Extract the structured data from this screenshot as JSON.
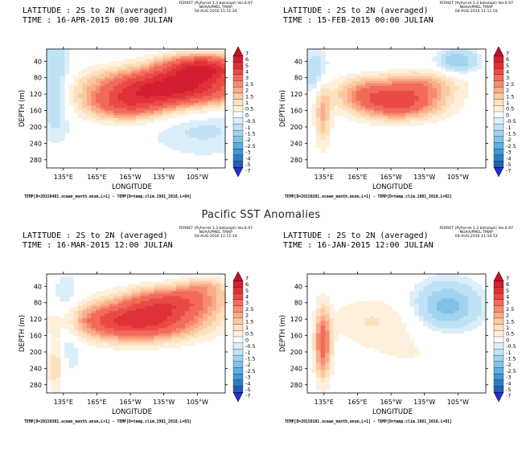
{
  "figure_title": "Pacific SST Anomalies",
  "panels": [
    {
      "latitude": "LATITUDE : 2S to 2N (averaged)",
      "time": "TIME : 16-APR-2015 00:00 JULIAN",
      "ferret": [
        "FERRET (PyFerret 1.3 beta/opt) Ver.6.97",
        "NOAA/PMEL TMAP",
        "04-AUG-2016 11:11:24"
      ],
      "footer": "TEMP[D=20150401.ocean_month.ensm,L=1] - TEMP[D=temp.clim.1981_2010,L=04]"
    },
    {
      "latitude": "LATITUDE : 2S to 2N (averaged)",
      "time": "TIME : 15-FEB-2015 00:00 JULIAN",
      "ferret": [
        "FERRET (PyFerret 1.3 beta/opt) Ver.6.97",
        "NOAA/PMEL TMAP",
        "04-AUG-2016 11:11:03"
      ],
      "footer": "TEMP[D=20150201.ocean_month.ensm,L=1] - TEMP[D=temp.clim.1981_2010,L=02]"
    },
    {
      "latitude": "LATITUDE : 2S to 2N (averaged)",
      "time": "TIME : 16-MAR-2015 12:00 JULIAN",
      "ferret": [
        "FERRET (PyFerret 1.3 beta/opt) Ver.6.97",
        "NOAA/PMEL TMAP",
        "04-AUG-2016 11:11:14"
      ],
      "footer": "TEMP[D=20150301.ocean_month.ensm,L=1] - TEMP[D=temp.clim.1981_2010,L=03]"
    },
    {
      "latitude": "LATITUDE : 2S to 2N (averaged)",
      "time": "TIME : 16-JAN-2015 12:00 JULIAN",
      "ferret": [
        "FERRET (PyFerret 1.3 beta/opt) Ver.6.97",
        "NOAA/PMEL TMAP",
        "04-AUG-2016 11:10:53"
      ],
      "footer": "TEMP[D=20150101.ocean_month.ensm,L=1] - TEMP[D=temp.clim.1981_2010,L=01]"
    }
  ],
  "chart_data": {
    "type": "heatmap",
    "xlabel": "LONGITUDE",
    "ylabel": "DEPTH (m)",
    "x_ticks": [
      "135°E",
      "165°E",
      "165°W",
      "135°W",
      "105°W"
    ],
    "x_tick_values": [
      135,
      165,
      195,
      225,
      255
    ],
    "xlim": [
      120,
      280
    ],
    "y_ticks": [
      "40",
      "80",
      "120",
      "160",
      "200",
      "240",
      "280"
    ],
    "y_tick_values": [
      40,
      80,
      120,
      160,
      200,
      240,
      280
    ],
    "ylim": [
      300,
      10
    ],
    "colorbar_levels": [
      "7",
      "6",
      "5",
      "4",
      "3",
      "2.5",
      "2",
      "1.5",
      "1",
      "0.5",
      "0",
      "-0.5",
      "-1",
      "-1.5",
      "-2",
      "-2.5",
      "-3",
      "-4",
      "-5",
      "-7"
    ],
    "colorbar_colors": [
      "#c4102a",
      "#d31f30",
      "#e03038",
      "#ea4a46",
      "#f26a5a",
      "#f78b70",
      "#fbac8a",
      "#fcc9a2",
      "#fde0bd",
      "#fef0dc",
      "#ffffff",
      "#dbeefa",
      "#bfe2f5",
      "#a1d3ef",
      "#80c1e8",
      "#5faee0",
      "#3f97d6",
      "#2a7ec8",
      "#1c63b6",
      "#2a2ccf"
    ],
    "panels": [
      {
        "date": "16-APR-2015",
        "features": [
          {
            "lon": 230,
            "depth": 105,
            "sx": 45,
            "sy": 32,
            "amp": 6.5
          },
          {
            "lon": 260,
            "depth": 55,
            "sx": 25,
            "sy": 22,
            "amp": 5
          },
          {
            "lon": 190,
            "depth": 150,
            "sx": 25,
            "sy": 25,
            "amp": 3
          },
          {
            "lon": 128,
            "depth": 100,
            "sx": 10,
            "sy": 80,
            "amp": -1.2
          },
          {
            "lon": 260,
            "depth": 200,
            "sx": 35,
            "sy": 50,
            "amp": -0.6
          }
        ]
      },
      {
        "date": "15-FEB-2015",
        "features": [
          {
            "lon": 200,
            "depth": 140,
            "sx": 28,
            "sy": 28,
            "amp": 4.5
          },
          {
            "lon": 220,
            "depth": 95,
            "sx": 25,
            "sy": 22,
            "amp": 2.0
          },
          {
            "lon": 168,
            "depth": 110,
            "sx": 18,
            "sy": 25,
            "amp": 1.5
          },
          {
            "lon": 134,
            "depth": 170,
            "sx": 5,
            "sy": 55,
            "amp": 2.0
          },
          {
            "lon": 128,
            "depth": 70,
            "sx": 8,
            "sy": 40,
            "amp": -1.0
          },
          {
            "lon": 255,
            "depth": 40,
            "sx": 12,
            "sy": 20,
            "amp": -1.5
          }
        ]
      },
      {
        "date": "16-MAR-2015",
        "features": [
          {
            "lon": 200,
            "depth": 125,
            "sx": 40,
            "sy": 32,
            "amp": 5.5
          },
          {
            "lon": 235,
            "depth": 75,
            "sx": 30,
            "sy": 25,
            "amp": 3.5
          },
          {
            "lon": 262,
            "depth": 40,
            "sx": 15,
            "sy": 15,
            "amp": 1.5
          },
          {
            "lon": 138,
            "depth": 130,
            "sx": 10,
            "sy": 70,
            "amp": -1.0
          },
          {
            "lon": 128,
            "depth": 230,
            "sx": 5,
            "sy": 50,
            "amp": 1.5
          }
        ]
      },
      {
        "date": "16-JAN-2015",
        "features": [
          {
            "lon": 245,
            "depth": 90,
            "sx": 20,
            "sy": 40,
            "amp": -1.8
          },
          {
            "lon": 134,
            "depth": 180,
            "sx": 5,
            "sy": 60,
            "amp": 3.5
          },
          {
            "lon": 175,
            "depth": 120,
            "sx": 25,
            "sy": 40,
            "amp": 0.9
          },
          {
            "lon": 215,
            "depth": 200,
            "sx": 40,
            "sy": 60,
            "amp": 0.5
          }
        ]
      }
    ]
  }
}
